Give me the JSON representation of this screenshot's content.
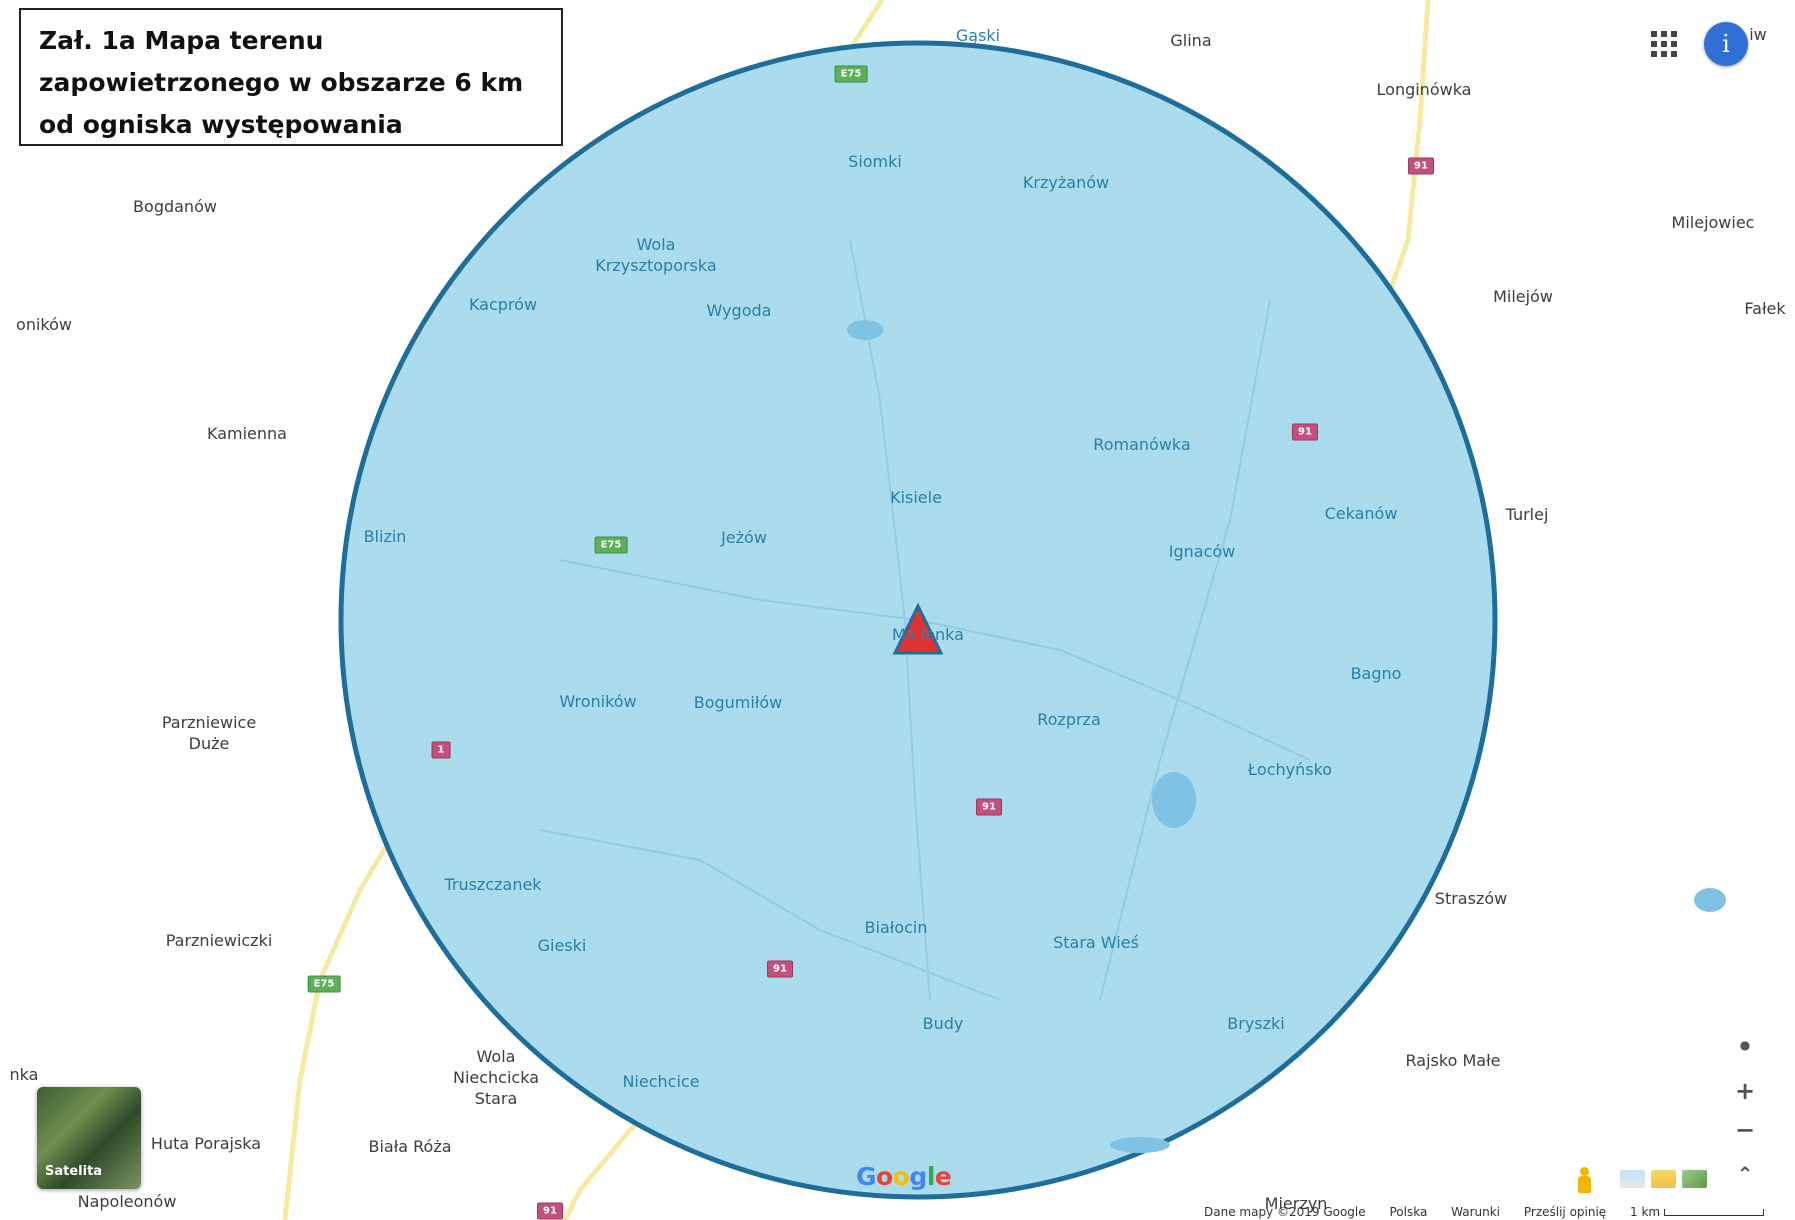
{
  "title": {
    "lines": [
      "Zał. 1a Mapa terenu",
      "zapowietrzonego w obszarze 6 km",
      "od ogniska występowania"
    ]
  },
  "map": {
    "zone_fill": "#aadcee",
    "zone_stroke": "#1f6d9a",
    "marker_fill": "#e03232",
    "marker_stroke": "#1f6d9a",
    "outbreak_icon": "triangle-marker-icon"
  },
  "places_inside": [
    "Gąski",
    "Siomki",
    "Krzyżanów",
    "Wola Krzysztoporska",
    "Kacprów",
    "Wygoda",
    "Romanówka",
    "Kisiele",
    "Blizin",
    "Jeżów",
    "Cekanów",
    "Ignaców",
    "Ma lenka",
    "Bagno",
    "Wroników",
    "Bogumiłów",
    "Rozprza",
    "Łochyńsko",
    "Truszczanek",
    "Białocin",
    "Stara Wieś",
    "Gieski",
    "Budy",
    "Bryszki",
    "Niechcice"
  ],
  "places_outside": [
    "Glina",
    "Longinówka",
    "Bogdanów",
    "Milejowiec",
    "Milejów",
    "oników",
    "Fałek",
    "Kamienna",
    "Turlej",
    "Parzniewice Duże",
    "Straszów",
    "Parzniewiczki",
    "Rajsko Małe",
    "nka",
    "Wola Niechcicka Stara",
    "Huta Porajska",
    "Biała Róża",
    "Napoleonów",
    "Mierzyn",
    "iw"
  ],
  "roads": {
    "e75": "E75",
    "r91": "91",
    "r1": "1"
  },
  "controls": {
    "apps_icon": "apps-grid-icon",
    "info_label": "i",
    "satellite_label": "Satelita",
    "google_logo": "Google",
    "zoom_in": "+",
    "zoom_out": "−",
    "compass": "●",
    "expand": "⌃"
  },
  "footer": {
    "data": "Dane mapy ©2019 Google",
    "country": "Polska",
    "terms": "Warunki",
    "feedback": "Prześlij opinię",
    "scale": "1 km"
  }
}
